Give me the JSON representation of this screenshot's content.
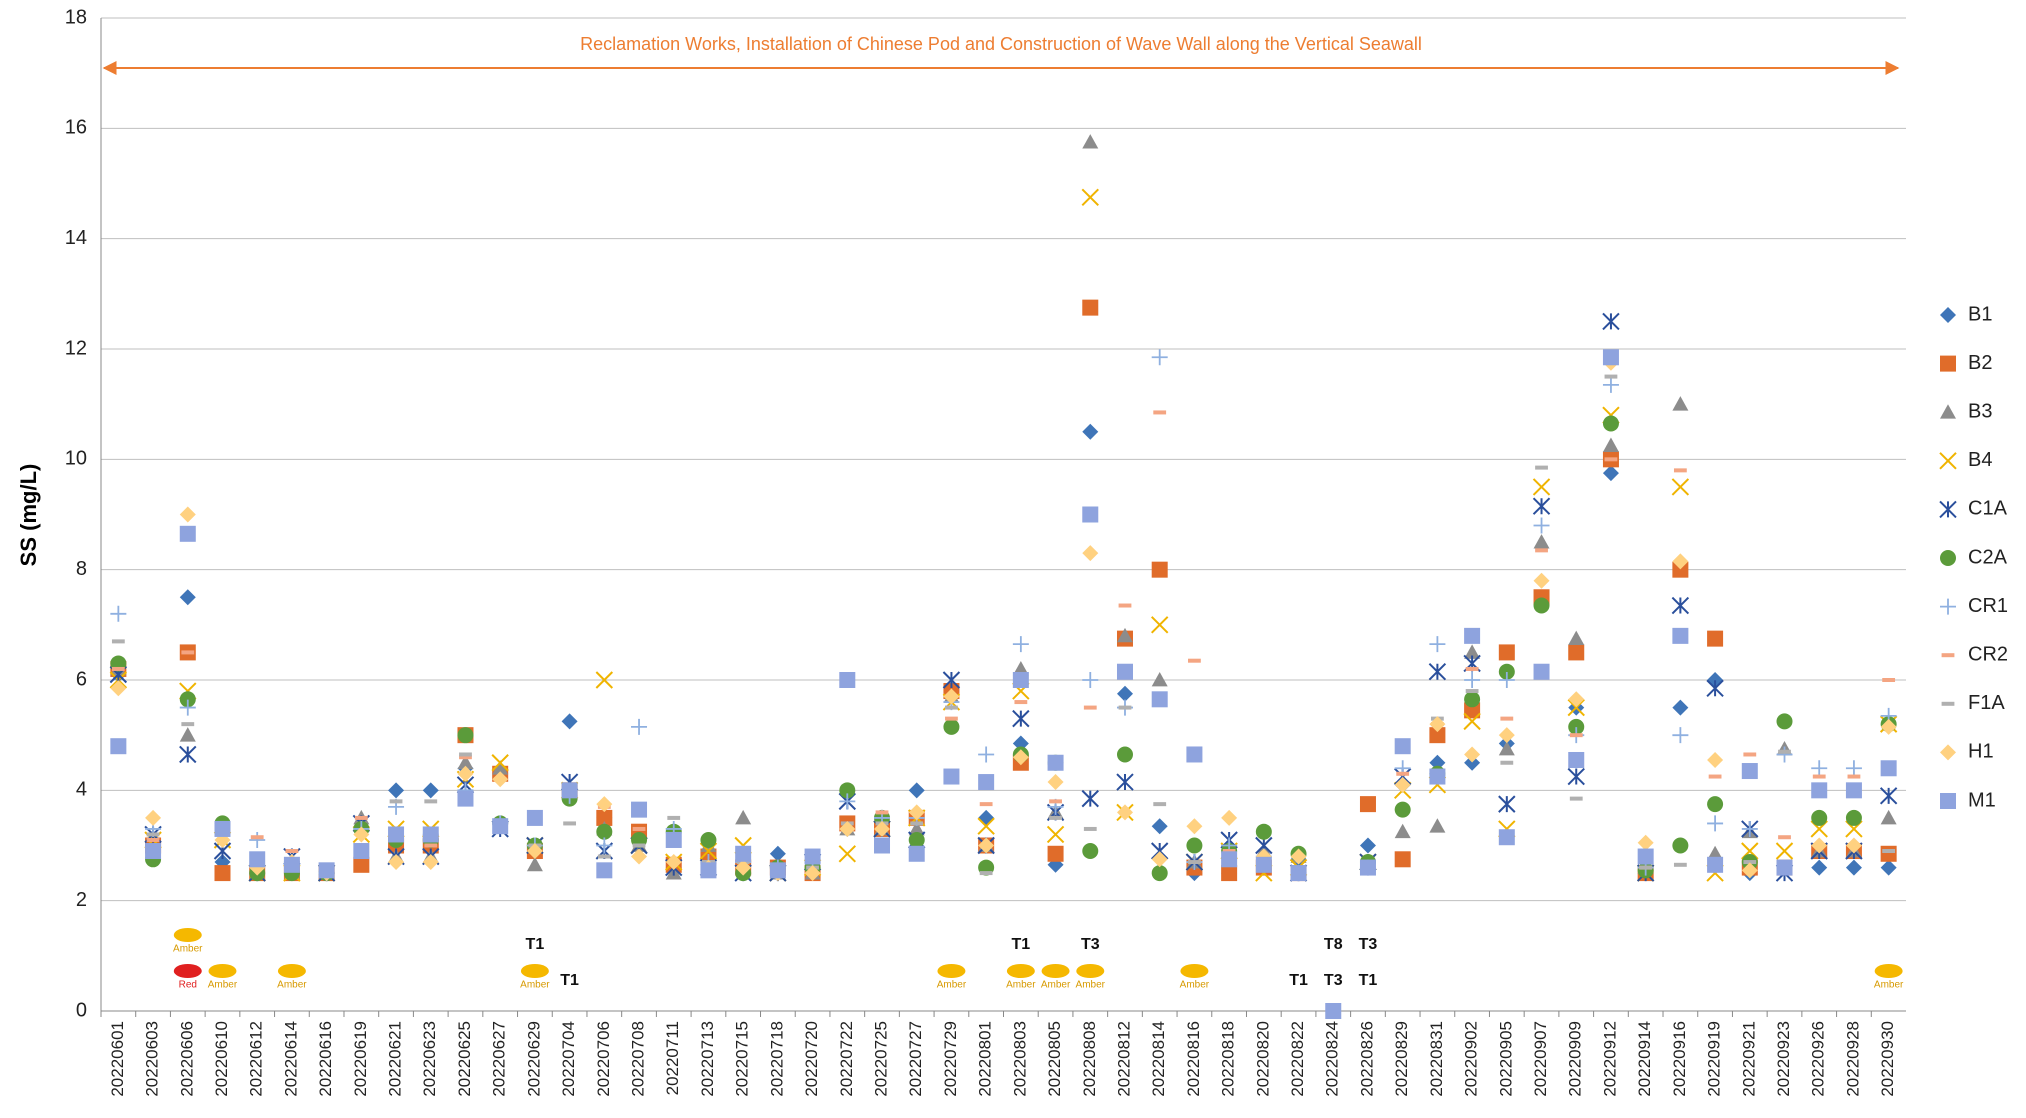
{
  "chart_data": {
    "type": "scatter",
    "y_label": "SS (mg/L)",
    "annotation": "Reclamation Works, Installation of Chinese Pod and Construction of Wave Wall along the Vertical Seawall",
    "categories": [
      "20220601",
      "20220603",
      "20220606",
      "20220610",
      "20220612",
      "20220614",
      "20220616",
      "20220619",
      "20220621",
      "20220623",
      "20220625",
      "20220627",
      "20220629",
      "20220704",
      "20220706",
      "20220708",
      "20220711",
      "20220713",
      "20220715",
      "20220718",
      "20220720",
      "20220722",
      "20220725",
      "20220727",
      "20220729",
      "20220801",
      "20220803",
      "20220805",
      "20220808",
      "20220812",
      "20220814",
      "20220816",
      "20220818",
      "20220820",
      "20220822",
      "20220824",
      "20220826",
      "20220829",
      "20220831",
      "20220902",
      "20220905",
      "20220907",
      "20220909",
      "20220912",
      "20220914",
      "20220916",
      "20220919",
      "20220921",
      "20220923",
      "20220926",
      "20220928",
      "20220930"
    ],
    "ylim": [
      0,
      18
    ],
    "yticks": [
      0,
      2,
      4,
      6,
      8,
      10,
      12,
      14,
      16,
      18
    ],
    "grid": true,
    "legend": "right",
    "series": [
      {
        "name": "B1",
        "color": "#3f75b8",
        "marker": "diamond",
        "values": [
          6.1,
          3.0,
          7.5,
          2.7,
          2.5,
          2.5,
          2.5,
          3.3,
          4.0,
          4.0,
          4.4,
          4.3,
          2.9,
          5.25,
          3.5,
          3.2,
          2.6,
          2.8,
          2.5,
          2.85,
          2.7,
          3.3,
          3.3,
          4.0,
          5.8,
          3.5,
          4.85,
          2.65,
          10.5,
          5.75,
          3.35,
          2.5,
          2.5,
          2.7,
          2.75,
          null,
          3.0,
          4.1,
          4.5,
          4.5,
          4.85,
          7.4,
          5.5,
          9.75,
          2.5,
          5.5,
          6.0,
          2.5,
          2.6,
          2.6,
          2.6,
          2.6
        ]
      },
      {
        "name": "B2",
        "color": "#e06c2a",
        "marker": "square",
        "values": [
          6.2,
          3.0,
          6.5,
          2.5,
          2.5,
          2.5,
          2.5,
          2.65,
          3.0,
          3.0,
          5.0,
          4.3,
          2.9,
          4.0,
          3.5,
          3.25,
          2.65,
          2.8,
          2.6,
          2.6,
          2.5,
          3.4,
          3.3,
          3.5,
          5.8,
          3.0,
          4.5,
          2.85,
          12.75,
          6.75,
          8.0,
          2.6,
          2.5,
          2.6,
          2.5,
          null,
          3.75,
          2.75,
          5.0,
          5.45,
          6.5,
          7.5,
          6.5,
          10.0,
          2.5,
          8.0,
          6.75,
          2.6,
          2.6,
          2.9,
          2.9,
          2.85
        ]
      },
      {
        "name": "B3",
        "color": "#8c8c8c",
        "marker": "triangle",
        "values": [
          6.2,
          2.9,
          5.0,
          3.3,
          2.5,
          2.5,
          2.5,
          3.5,
          2.8,
          2.8,
          4.5,
          4.4,
          2.65,
          4.0,
          3.3,
          3.0,
          2.5,
          3.0,
          3.5,
          2.5,
          2.5,
          3.3,
          3.3,
          3.3,
          5.7,
          3.0,
          6.2,
          3.6,
          15.75,
          6.8,
          6.0,
          2.7,
          2.9,
          2.9,
          2.8,
          null,
          2.7,
          3.25,
          3.35,
          6.5,
          4.75,
          8.5,
          6.75,
          10.25,
          2.6,
          11.0,
          2.85,
          3.25,
          4.75,
          2.9,
          2.9,
          3.5
        ]
      },
      {
        "name": "B4",
        "color": "#f0b400",
        "marker": "x",
        "values": [
          6.0,
          3.1,
          5.8,
          3.1,
          2.5,
          2.5,
          2.5,
          3.2,
          3.3,
          3.3,
          4.2,
          4.5,
          3.0,
          4.0,
          6.0,
          3.0,
          2.7,
          2.9,
          3.0,
          2.5,
          2.6,
          2.85,
          3.3,
          3.5,
          5.6,
          3.35,
          5.8,
          3.2,
          14.75,
          3.6,
          7.0,
          2.7,
          2.9,
          2.5,
          2.6,
          null,
          2.7,
          4.0,
          4.1,
          5.25,
          3.3,
          9.5,
          5.5,
          10.8,
          2.5,
          9.5,
          2.5,
          2.9,
          2.9,
          3.3,
          3.3,
          5.2
        ]
      },
      {
        "name": "C1A",
        "color": "#2a4f9c",
        "marker": "asterisk",
        "values": [
          6.1,
          3.2,
          4.65,
          2.9,
          2.5,
          2.8,
          2.5,
          3.4,
          2.8,
          2.8,
          4.1,
          3.3,
          3.0,
          4.15,
          2.9,
          3.0,
          2.6,
          2.6,
          2.5,
          2.5,
          2.7,
          3.8,
          3.3,
          3.1,
          6.0,
          3.0,
          5.3,
          3.6,
          3.85,
          4.15,
          2.9,
          2.7,
          3.1,
          3.0,
          2.5,
          null,
          2.7,
          4.25,
          6.15,
          6.3,
          3.75,
          9.15,
          4.25,
          12.5,
          2.5,
          7.35,
          5.85,
          3.3,
          2.5,
          2.9,
          2.9,
          3.9
        ]
      },
      {
        "name": "C2A",
        "color": "#5b9b3a",
        "marker": "circle",
        "values": [
          6.3,
          2.75,
          5.65,
          3.4,
          2.5,
          2.5,
          2.5,
          3.3,
          3.1,
          3.1,
          5.0,
          3.4,
          3.0,
          3.85,
          3.25,
          3.1,
          3.25,
          3.1,
          2.5,
          2.6,
          2.6,
          4.0,
          3.5,
          3.1,
          5.15,
          2.6,
          4.65,
          4.5,
          2.9,
          4.65,
          2.5,
          3.0,
          2.9,
          3.25,
          2.85,
          null,
          2.7,
          3.65,
          4.3,
          5.65,
          6.15,
          7.35,
          5.15,
          10.65,
          2.55,
          3.0,
          3.75,
          2.7,
          5.25,
          3.5,
          3.5,
          5.2
        ]
      },
      {
        "name": "CR1",
        "color": "#8fb0e0",
        "marker": "plus",
        "values": [
          7.2,
          3.3,
          5.5,
          3.2,
          3.1,
          2.7,
          2.5,
          3.3,
          3.7,
          3.2,
          4.0,
          3.4,
          3.0,
          3.9,
          3.0,
          5.15,
          3.3,
          2.7,
          2.7,
          2.6,
          2.7,
          3.8,
          3.5,
          3.5,
          5.6,
          4.65,
          6.65,
          3.7,
          6.0,
          5.5,
          11.85,
          2.7,
          3.0,
          2.8,
          2.5,
          null,
          2.6,
          4.4,
          6.65,
          6.0,
          6.0,
          8.8,
          5.0,
          11.35,
          2.6,
          5.0,
          3.4,
          3.3,
          4.65,
          4.4,
          4.4,
          5.35
        ]
      },
      {
        "name": "CR2",
        "color": "#f4a582",
        "marker": "dash",
        "values": [
          6.2,
          3.1,
          6.5,
          3.3,
          3.15,
          2.9,
          2.5,
          3.5,
          3.2,
          3.0,
          4.6,
          4.2,
          3.0,
          4.1,
          3.7,
          3.3,
          3.1,
          2.7,
          2.7,
          2.6,
          2.7,
          3.3,
          3.6,
          3.6,
          5.3,
          3.75,
          5.6,
          3.8,
          5.5,
          7.35,
          10.85,
          6.35,
          2.9,
          2.8,
          2.6,
          null,
          2.7,
          4.3,
          5.2,
          6.2,
          5.3,
          8.35,
          5.0,
          10.0,
          2.6,
          9.8,
          4.25,
          4.65,
          3.15,
          4.25,
          4.25,
          6.0
        ]
      },
      {
        "name": "F1A",
        "color": "#b0b0b0",
        "marker": "dash",
        "values": [
          6.7,
          3.2,
          5.2,
          3.3,
          2.6,
          2.6,
          2.5,
          3.0,
          3.8,
          3.8,
          4.65,
          3.4,
          3.0,
          3.4,
          2.8,
          3.0,
          3.5,
          2.7,
          2.7,
          2.6,
          2.6,
          3.4,
          3.4,
          3.4,
          5.5,
          2.5,
          6.05,
          3.5,
          3.3,
          5.5,
          3.75,
          2.7,
          2.7,
          2.6,
          2.6,
          null,
          2.6,
          4.1,
          5.3,
          5.8,
          4.5,
          9.85,
          3.85,
          11.5,
          2.6,
          2.65,
          2.6,
          2.7,
          4.7,
          3.9,
          3.9,
          2.9
        ]
      },
      {
        "name": "H1",
        "color": "#ffd180",
        "marker": "diamond",
        "values": [
          5.85,
          3.5,
          9.0,
          3.1,
          2.6,
          2.7,
          2.5,
          3.2,
          2.7,
          2.7,
          4.3,
          4.2,
          2.9,
          4.0,
          3.75,
          2.8,
          2.7,
          2.6,
          2.6,
          2.5,
          2.5,
          3.3,
          3.3,
          3.6,
          5.7,
          3.0,
          4.6,
          4.15,
          8.3,
          3.6,
          2.75,
          3.35,
          3.5,
          2.8,
          2.8,
          null,
          2.6,
          4.1,
          5.2,
          4.65,
          5.0,
          7.8,
          5.65,
          11.75,
          3.05,
          8.15,
          4.55,
          2.55,
          2.6,
          3.0,
          3.0,
          5.15
        ]
      },
      {
        "name": "M1",
        "color": "#8ea3de",
        "marker": "square",
        "values": [
          4.8,
          2.9,
          8.65,
          3.3,
          2.75,
          2.65,
          2.55,
          2.9,
          3.2,
          3.2,
          3.85,
          3.35,
          3.5,
          4.0,
          2.55,
          3.65,
          3.1,
          2.55,
          2.85,
          2.55,
          2.8,
          6.0,
          3.0,
          2.85,
          4.25,
          4.15,
          6.0,
          4.5,
          9.0,
          6.15,
          5.65,
          4.65,
          2.75,
          2.65,
          2.5,
          0,
          2.6,
          4.8,
          4.25,
          6.8,
          3.15,
          6.15,
          4.55,
          11.85,
          2.8,
          6.8,
          2.65,
          4.35,
          2.6,
          4.0,
          4.0,
          4.4
        ]
      }
    ],
    "warnings": [
      {
        "x": "20220606",
        "text": "Red"
      },
      {
        "x": "20220606",
        "text": "Amber"
      },
      {
        "x": "20220610",
        "text": "Amber"
      },
      {
        "x": "20220614",
        "text": "Amber"
      },
      {
        "x": "20220629",
        "text": "Amber"
      },
      {
        "x": "20220629",
        "text": "T1"
      },
      {
        "x": "20220704",
        "text": "T1"
      },
      {
        "x": "20220729",
        "text": "Amber"
      },
      {
        "x": "20220803",
        "text": "Amber"
      },
      {
        "x": "20220803",
        "text": "T1"
      },
      {
        "x": "20220805",
        "text": "Amber"
      },
      {
        "x": "20220808",
        "text": "Amber"
      },
      {
        "x": "20220808",
        "text": "T3"
      },
      {
        "x": "20220816",
        "text": "Amber"
      },
      {
        "x": "20220822",
        "text": "T1"
      },
      {
        "x": "20220824",
        "text": "T3"
      },
      {
        "x": "20220824",
        "text": "T8"
      },
      {
        "x": "20220826",
        "text": "T1"
      },
      {
        "x": "20220826",
        "text": "T3"
      },
      {
        "x": "20220930",
        "text": "Amber"
      }
    ]
  }
}
